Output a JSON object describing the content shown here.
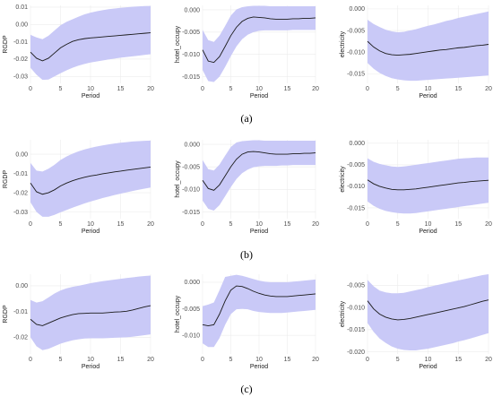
{
  "figure": {
    "captions": [
      "(a)",
      "(b)",
      "(c)"
    ],
    "band_color": "#c9c9f7",
    "line_color": "#1a1a1a"
  },
  "chart_data": [
    {
      "type": "line",
      "panel": "a",
      "xlabel": "Period",
      "ylabel": "RGDP",
      "xlim": [
        0,
        20
      ],
      "ylim": [
        -0.034,
        0.011
      ],
      "xticks": [
        0,
        5,
        10,
        15,
        20
      ],
      "yticks": [
        0.01,
        0.0,
        -0.01,
        -0.02,
        -0.03
      ],
      "ytick_labels": [
        "0.01",
        "0.00",
        "-0.01",
        "-0.02",
        "-0.03"
      ],
      "x": [
        0,
        1,
        2,
        3,
        4,
        5,
        6,
        7,
        8,
        9,
        10,
        11,
        12,
        13,
        14,
        15,
        16,
        17,
        18,
        19,
        20
      ],
      "y": [
        -0.016,
        -0.0195,
        -0.021,
        -0.0195,
        -0.0165,
        -0.0135,
        -0.0115,
        -0.0098,
        -0.0088,
        -0.0082,
        -0.0078,
        -0.0075,
        -0.0072,
        -0.0069,
        -0.0066,
        -0.0063,
        -0.006,
        -0.0057,
        -0.0054,
        -0.0051,
        -0.0048
      ],
      "lower": [
        -0.025,
        -0.029,
        -0.032,
        -0.0318,
        -0.03,
        -0.0282,
        -0.0265,
        -0.025,
        -0.0238,
        -0.0228,
        -0.022,
        -0.0214,
        -0.0208,
        -0.0202,
        -0.0197,
        -0.0192,
        -0.0188,
        -0.0184,
        -0.018,
        -0.0176,
        -0.0172
      ],
      "upper": [
        -0.006,
        -0.0075,
        -0.0085,
        -0.0065,
        -0.0035,
        -0.0005,
        0.0015,
        0.003,
        0.0045,
        0.0058,
        0.0068,
        0.0076,
        0.0082,
        0.0088,
        0.0092,
        0.0096,
        0.0099,
        0.0102,
        0.0104,
        0.0106,
        0.0107
      ]
    },
    {
      "type": "line",
      "panel": "a",
      "xlabel": "Period",
      "ylabel": "hotel_occupy",
      "xlim": [
        0,
        20
      ],
      "ylim": [
        -0.0165,
        0.001
      ],
      "xticks": [
        0,
        5,
        10,
        15,
        20
      ],
      "yticks": [
        0.0,
        -0.005,
        -0.01,
        -0.015
      ],
      "ytick_labels": [
        "0.000",
        "-0.005",
        "-0.010",
        "-0.015"
      ],
      "x": [
        0,
        1,
        2,
        3,
        4,
        5,
        6,
        7,
        8,
        9,
        10,
        11,
        12,
        13,
        14,
        15,
        16,
        17,
        18,
        19,
        20
      ],
      "y": [
        -0.009,
        -0.0115,
        -0.0118,
        -0.0105,
        -0.0082,
        -0.0058,
        -0.0039,
        -0.0026,
        -0.0019,
        -0.0016,
        -0.0017,
        -0.0018,
        -0.002,
        -0.0021,
        -0.0021,
        -0.0021,
        -0.002,
        -0.002,
        -0.0019,
        -0.0019,
        -0.0018
      ],
      "lower": [
        -0.0135,
        -0.016,
        -0.0162,
        -0.015,
        -0.0128,
        -0.0104,
        -0.0082,
        -0.0066,
        -0.0056,
        -0.005,
        -0.0047,
        -0.0046,
        -0.0046,
        -0.0046,
        -0.0046,
        -0.0046,
        -0.0045,
        -0.0045,
        -0.0045,
        -0.0045,
        -0.0045
      ],
      "upper": [
        -0.0045,
        -0.0068,
        -0.0072,
        -0.0058,
        -0.0036,
        -0.0013,
        0.0001,
        0.0006,
        0.0008,
        0.0009,
        0.0009,
        0.0009,
        0.0008,
        0.0008,
        0.0008,
        0.0008,
        0.0008,
        0.0008,
        0.0008,
        0.0008,
        0.0008
      ]
    },
    {
      "type": "line",
      "panel": "a",
      "xlabel": "Period",
      "ylabel": "electricity",
      "xlim": [
        0,
        20
      ],
      "ylim": [
        -0.0172,
        0.0008
      ],
      "xticks": [
        0,
        5,
        10,
        15,
        20
      ],
      "yticks": [
        0.0,
        -0.005,
        -0.01,
        -0.015
      ],
      "ytick_labels": [
        "0.000",
        "-0.005",
        "-0.010",
        "-0.015"
      ],
      "x": [
        0,
        1,
        2,
        3,
        4,
        5,
        6,
        7,
        8,
        9,
        10,
        11,
        12,
        13,
        14,
        15,
        16,
        17,
        18,
        19,
        20
      ],
      "y": [
        -0.0075,
        -0.0088,
        -0.0097,
        -0.0103,
        -0.0106,
        -0.0107,
        -0.0106,
        -0.0105,
        -0.0103,
        -0.0101,
        -0.0099,
        -0.0097,
        -0.0095,
        -0.0094,
        -0.0092,
        -0.009,
        -0.0089,
        -0.0087,
        -0.0085,
        -0.0084,
        -0.0082
      ],
      "lower": [
        -0.0125,
        -0.0138,
        -0.0148,
        -0.0155,
        -0.016,
        -0.0163,
        -0.0165,
        -0.0166,
        -0.0166,
        -0.0165,
        -0.0164,
        -0.0163,
        -0.0162,
        -0.0161,
        -0.016,
        -0.0159,
        -0.0158,
        -0.0157,
        -0.0156,
        -0.0155,
        -0.0154
      ],
      "upper": [
        -0.0025,
        -0.0035,
        -0.0042,
        -0.0048,
        -0.0052,
        -0.0054,
        -0.0053,
        -0.005,
        -0.0047,
        -0.0043,
        -0.0039,
        -0.0036,
        -0.0032,
        -0.0028,
        -0.0025,
        -0.0021,
        -0.0018,
        -0.0015,
        -0.0012,
        -0.0009,
        -0.0006
      ]
    },
    {
      "type": "line",
      "panel": "b",
      "xlabel": "Period",
      "ylabel": "RGDP",
      "xlim": [
        0,
        20
      ],
      "ylim": [
        -0.0335,
        0.0075
      ],
      "xticks": [
        0,
        5,
        10,
        15,
        20
      ],
      "yticks": [
        0.0,
        -0.01,
        -0.02,
        -0.03
      ],
      "ytick_labels": [
        "0.00",
        "-0.01",
        "-0.02",
        "-0.03"
      ],
      "x": [
        0,
        1,
        2,
        3,
        4,
        5,
        6,
        7,
        8,
        9,
        10,
        11,
        12,
        13,
        14,
        15,
        16,
        17,
        18,
        19,
        20
      ],
      "y": [
        -0.015,
        -0.0195,
        -0.0208,
        -0.02,
        -0.0185,
        -0.0165,
        -0.015,
        -0.0138,
        -0.0128,
        -0.012,
        -0.0113,
        -0.0108,
        -0.0102,
        -0.0097,
        -0.0092,
        -0.0088,
        -0.0083,
        -0.0079,
        -0.0075,
        -0.0071,
        -0.0067
      ],
      "lower": [
        -0.025,
        -0.03,
        -0.0325,
        -0.0325,
        -0.0315,
        -0.0302,
        -0.029,
        -0.0278,
        -0.0267,
        -0.0256,
        -0.0246,
        -0.0237,
        -0.0228,
        -0.022,
        -0.0212,
        -0.0205,
        -0.0198,
        -0.0191,
        -0.0185,
        -0.0179,
        -0.0173
      ],
      "upper": [
        -0.0045,
        -0.0085,
        -0.009,
        -0.0075,
        -0.0055,
        -0.003,
        -0.0012,
        0.0003,
        0.0015,
        0.0025,
        0.0033,
        0.004,
        0.0046,
        0.0051,
        0.0056,
        0.006,
        0.0063,
        0.0066,
        0.0068,
        0.007,
        0.0071
      ]
    },
    {
      "type": "line",
      "panel": "b",
      "xlabel": "Period",
      "ylabel": "hotel_occupy",
      "xlim": [
        0,
        20
      ],
      "ylim": [
        -0.0165,
        0.001
      ],
      "xticks": [
        0,
        5,
        10,
        15,
        20
      ],
      "yticks": [
        0.0,
        -0.005,
        -0.01,
        -0.015
      ],
      "ytick_labels": [
        "0.000",
        "-0.005",
        "-0.010",
        "-0.015"
      ],
      "x": [
        0,
        1,
        2,
        3,
        4,
        5,
        6,
        7,
        8,
        9,
        10,
        11,
        12,
        13,
        14,
        15,
        16,
        17,
        18,
        19,
        20
      ],
      "y": [
        -0.008,
        -0.0098,
        -0.0102,
        -0.009,
        -0.007,
        -0.005,
        -0.0033,
        -0.0022,
        -0.0017,
        -0.0016,
        -0.0017,
        -0.0019,
        -0.0021,
        -0.0022,
        -0.0022,
        -0.0022,
        -0.0021,
        -0.0021,
        -0.002,
        -0.002,
        -0.0019
      ],
      "lower": [
        -0.0125,
        -0.0143,
        -0.0147,
        -0.0135,
        -0.0115,
        -0.0095,
        -0.0077,
        -0.0064,
        -0.0056,
        -0.0051,
        -0.0049,
        -0.0048,
        -0.0048,
        -0.0048,
        -0.0047,
        -0.0047,
        -0.0046,
        -0.0046,
        -0.0046,
        -0.0046,
        -0.0046
      ],
      "upper": [
        -0.0035,
        -0.0055,
        -0.0058,
        -0.0045,
        -0.0025,
        -0.0006,
        0.0004,
        0.0007,
        0.0008,
        0.0009,
        0.0009,
        0.0008,
        0.0008,
        0.0008,
        0.0008,
        0.0008,
        0.0008,
        0.0008,
        0.0008,
        0.0008,
        0.0008
      ]
    },
    {
      "type": "line",
      "panel": "b",
      "xlabel": "Period",
      "ylabel": "electricity",
      "xlim": [
        0,
        20
      ],
      "ylim": [
        -0.0175,
        0.0008
      ],
      "xticks": [
        0,
        5,
        10,
        15,
        20
      ],
      "yticks": [
        0.0,
        -0.005,
        -0.01,
        -0.015
      ],
      "ytick_labels": [
        "0.000",
        "-0.005",
        "-0.010",
        "-0.015"
      ],
      "x": [
        0,
        1,
        2,
        3,
        4,
        5,
        6,
        7,
        8,
        9,
        10,
        11,
        12,
        13,
        14,
        15,
        16,
        17,
        18,
        19,
        20
      ],
      "y": [
        -0.0085,
        -0.0094,
        -0.01,
        -0.0104,
        -0.0107,
        -0.0108,
        -0.0108,
        -0.0107,
        -0.0106,
        -0.0104,
        -0.0102,
        -0.01,
        -0.0098,
        -0.0096,
        -0.0094,
        -0.0092,
        -0.0091,
        -0.0089,
        -0.0088,
        -0.0087,
        -0.0086
      ],
      "lower": [
        -0.0135,
        -0.0145,
        -0.0152,
        -0.0157,
        -0.016,
        -0.0162,
        -0.0163,
        -0.0163,
        -0.0162,
        -0.016,
        -0.0158,
        -0.0156,
        -0.0154,
        -0.0152,
        -0.015,
        -0.0148,
        -0.0146,
        -0.0144,
        -0.0142,
        -0.014,
        -0.0138
      ],
      "upper": [
        -0.0035,
        -0.0043,
        -0.0048,
        -0.0051,
        -0.0054,
        -0.0055,
        -0.0054,
        -0.0052,
        -0.005,
        -0.0048,
        -0.0046,
        -0.0044,
        -0.0042,
        -0.004,
        -0.0038,
        -0.0036,
        -0.0035,
        -0.0034,
        -0.0033,
        -0.0033,
        -0.0033
      ]
    },
    {
      "type": "line",
      "panel": "c",
      "xlabel": "Period",
      "ylabel": "RGDP",
      "xlim": [
        0,
        20
      ],
      "ylim": [
        -0.0265,
        0.0045
      ],
      "xticks": [
        0,
        5,
        10,
        15,
        20
      ],
      "yticks": [
        0.0,
        -0.01,
        -0.02
      ],
      "ytick_labels": [
        "0.00",
        "-0.01",
        "-0.02"
      ],
      "x": [
        0,
        1,
        2,
        3,
        4,
        5,
        6,
        7,
        8,
        9,
        10,
        11,
        12,
        13,
        14,
        15,
        16,
        17,
        18,
        19,
        20
      ],
      "y": [
        -0.013,
        -0.015,
        -0.0155,
        -0.0145,
        -0.0135,
        -0.0125,
        -0.0118,
        -0.0112,
        -0.0108,
        -0.0107,
        -0.0106,
        -0.0106,
        -0.0106,
        -0.0104,
        -0.0102,
        -0.0101,
        -0.0099,
        -0.0094,
        -0.0088,
        -0.0082,
        -0.0077
      ],
      "lower": [
        -0.02,
        -0.0235,
        -0.025,
        -0.0245,
        -0.0235,
        -0.0225,
        -0.0218,
        -0.0212,
        -0.0208,
        -0.0205,
        -0.0204,
        -0.0204,
        -0.0204,
        -0.0203,
        -0.0202,
        -0.0201,
        -0.02,
        -0.0198,
        -0.0195,
        -0.0192,
        -0.0189
      ],
      "upper": [
        -0.0055,
        -0.0065,
        -0.006,
        -0.0045,
        -0.003,
        -0.0018,
        -0.001,
        -0.0004,
        0.0,
        0.0005,
        0.001,
        0.0014,
        0.0018,
        0.0021,
        0.0024,
        0.0027,
        0.003,
        0.0033,
        0.0036,
        0.0038,
        0.004
      ]
    },
    {
      "type": "line",
      "panel": "c",
      "xlabel": "Period",
      "ylabel": "hotel_occupy",
      "xlim": [
        0,
        20
      ],
      "ylim": [
        -0.0135,
        0.0015
      ],
      "xticks": [
        0,
        5,
        10,
        15,
        20
      ],
      "yticks": [
        0.0,
        -0.005,
        -0.01
      ],
      "ytick_labels": [
        "0.000",
        "-0.005",
        "-0.010"
      ],
      "x": [
        0,
        1,
        2,
        3,
        4,
        5,
        6,
        7,
        8,
        9,
        10,
        11,
        12,
        13,
        14,
        15,
        16,
        17,
        18,
        19,
        20
      ],
      "y": [
        -0.008,
        -0.0082,
        -0.008,
        -0.006,
        -0.0035,
        -0.0015,
        -0.0007,
        -0.0008,
        -0.0012,
        -0.0017,
        -0.0021,
        -0.0024,
        -0.0026,
        -0.0027,
        -0.0027,
        -0.0027,
        -0.0026,
        -0.0025,
        -0.0024,
        -0.0023,
        -0.0022
      ],
      "lower": [
        -0.0115,
        -0.0122,
        -0.0122,
        -0.0105,
        -0.008,
        -0.006,
        -0.0051,
        -0.005,
        -0.0051,
        -0.0054,
        -0.0056,
        -0.0057,
        -0.0058,
        -0.0058,
        -0.0058,
        -0.0057,
        -0.0056,
        -0.0055,
        -0.0054,
        -0.0053,
        -0.0052
      ],
      "upper": [
        -0.0045,
        -0.0042,
        -0.0038,
        -0.0015,
        0.001,
        0.0012,
        0.0014,
        0.0012,
        0.0009,
        0.0006,
        0.0003,
        0.0001,
        0.0,
        0.0,
        0.0,
        0.0,
        0.0001,
        0.0002,
        0.0003,
        0.0004,
        0.0005
      ]
    },
    {
      "type": "line",
      "panel": "c",
      "xlabel": "Period",
      "ylabel": "electricity",
      "xlim": [
        0,
        20
      ],
      "ylim": [
        -0.0205,
        -0.0025
      ],
      "xticks": [
        0,
        5,
        10,
        15,
        20
      ],
      "yticks": [
        -0.005,
        -0.01,
        -0.015,
        -0.02
      ],
      "ytick_labels": [
        "-0.005",
        "-0.010",
        "-0.015",
        "-0.020"
      ],
      "x": [
        0,
        1,
        2,
        3,
        4,
        5,
        6,
        7,
        8,
        9,
        10,
        11,
        12,
        13,
        14,
        15,
        16,
        17,
        18,
        19,
        20
      ],
      "y": [
        -0.0085,
        -0.0103,
        -0.0115,
        -0.0122,
        -0.0126,
        -0.0128,
        -0.0127,
        -0.0125,
        -0.0122,
        -0.0119,
        -0.0116,
        -0.0113,
        -0.011,
        -0.0107,
        -0.0104,
        -0.0101,
        -0.0098,
        -0.0094,
        -0.009,
        -0.0086,
        -0.0083
      ],
      "lower": [
        -0.0135,
        -0.0155,
        -0.017,
        -0.018,
        -0.0188,
        -0.0193,
        -0.0196,
        -0.0197,
        -0.0197,
        -0.0195,
        -0.0193,
        -0.019,
        -0.0187,
        -0.0184,
        -0.0181,
        -0.0177,
        -0.0174,
        -0.017,
        -0.0166,
        -0.0162,
        -0.0158
      ],
      "upper": [
        -0.0038,
        -0.0052,
        -0.0062,
        -0.0066,
        -0.0068,
        -0.0068,
        -0.0067,
        -0.0064,
        -0.0061,
        -0.0058,
        -0.0054,
        -0.0051,
        -0.0048,
        -0.0045,
        -0.0042,
        -0.0039,
        -0.0036,
        -0.0033,
        -0.003,
        -0.0027,
        -0.0025
      ]
    }
  ]
}
